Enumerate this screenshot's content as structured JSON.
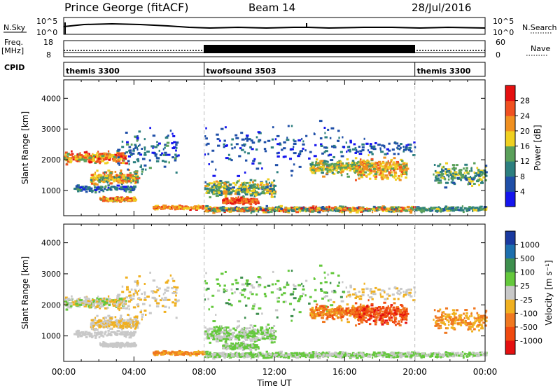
{
  "header": {
    "station": "Prince George (fitACF)",
    "beam": "Beam 14",
    "date": "28/Jul/2016"
  },
  "sky_panel": {
    "left_label": "N.Sky",
    "left_ticks": [
      "10^5",
      "10^0"
    ],
    "right_label": "N.Search",
    "right_ticks": [
      "10^5",
      "10^0"
    ]
  },
  "freq_panel": {
    "left_label_1": "Freq.",
    "left_label_2": "[MHz]",
    "left_ticks": [
      "18",
      "8"
    ],
    "right_label": "Nave",
    "right_ticks": [
      "60",
      "0"
    ]
  },
  "cpid": {
    "label": "CPID",
    "segments": [
      {
        "name": "themis 3300",
        "start": 0,
        "end": 8
      },
      {
        "name": "twofsound 3503",
        "start": 8,
        "end": 20
      },
      {
        "name": "themis 3300",
        "start": 20,
        "end": 24
      }
    ]
  },
  "chart_data": [
    {
      "type": "heatmap",
      "ylabel": "Slant Range [km]",
      "xlabel": "",
      "ylim": [
        180,
        4600
      ],
      "xlim": [
        0,
        24
      ],
      "yticks": [
        "1000",
        "2000",
        "3000",
        "4000"
      ],
      "colorbar": {
        "label": "Power [dB]",
        "ticks": [
          "4",
          "8",
          "12",
          "16",
          "20",
          "24",
          "28"
        ],
        "colors": [
          "#1515ee",
          "#1f4fa8",
          "#2c7f7f",
          "#5aa05a",
          "#f0d020",
          "#f09020",
          "#f05020",
          "#e51010"
        ]
      }
    },
    {
      "type": "heatmap",
      "ylabel": "Slant Range [km]",
      "xlabel": "Time UT",
      "ylim": [
        180,
        4600
      ],
      "xlim": [
        0,
        24
      ],
      "yticks": [
        "1000",
        "2000",
        "3000",
        "4000"
      ],
      "xticks": [
        "00:00",
        "04:00",
        "08:00",
        "12:00",
        "16:00",
        "20:00",
        "00:00"
      ],
      "colorbar": {
        "label": "Velocity [m s⁻¹]",
        "ticks": [
          "1000",
          "500",
          "100",
          "25",
          "-25",
          "-100",
          "-500",
          "-1000"
        ],
        "colors": [
          "#1a3aa0",
          "#1d6fae",
          "#3e8f4e",
          "#64c83c",
          "#c8c8c8",
          "#f0b020",
          "#f07820",
          "#f04a10",
          "#e51010"
        ]
      }
    }
  ]
}
